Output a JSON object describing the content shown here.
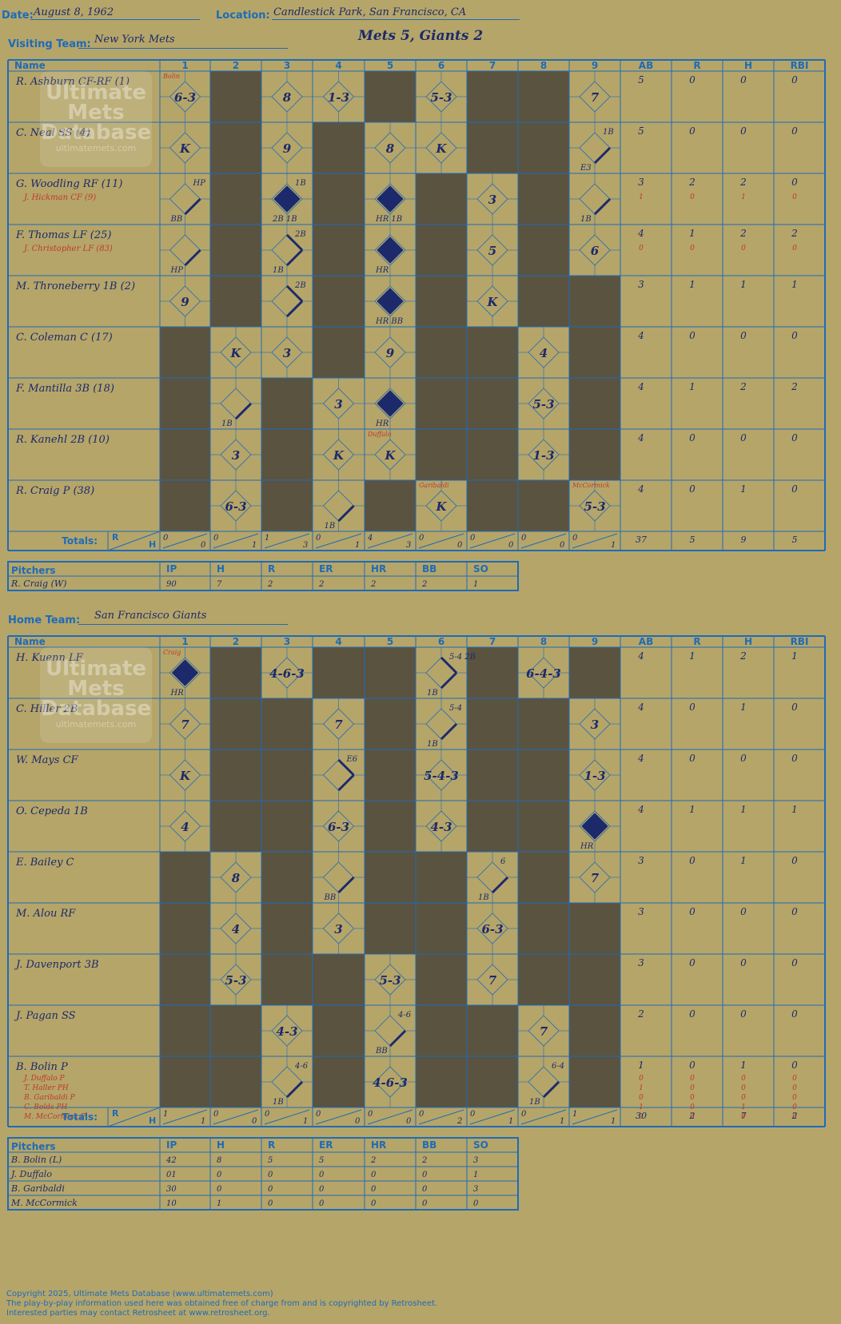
{
  "header": {
    "date_label": "Date:",
    "date": "August 8, 1962",
    "location_label": "Location:",
    "location": "Candlestick Park, San Francisco, CA",
    "visiting_label": "Visiting Team:",
    "visiting_team": "New York Mets",
    "home_label": "Home Team:",
    "home_team": "San Francisco Giants",
    "result": "Mets 5, Giants 2"
  },
  "labels": {
    "name": "Name",
    "totals": "Totals:",
    "r": "R",
    "h": "H",
    "innings": [
      "1",
      "2",
      "3",
      "4",
      "5",
      "6",
      "7",
      "8",
      "9"
    ],
    "stat_cols": [
      "AB",
      "R",
      "H",
      "RBI"
    ],
    "pitchers": "Pitchers",
    "pitch_cols": [
      "IP",
      "H",
      "R",
      "ER",
      "HR",
      "BB",
      "SO"
    ]
  },
  "visitors": {
    "batters": [
      {
        "name": "R. Ashburn CF-RF (1)",
        "subs": [],
        "stats": [
          "5",
          "0",
          "0",
          "0"
        ],
        "sub_stats": [],
        "plays": [
          {
            "i": 1,
            "t": "6-3"
          },
          {
            "i": 3,
            "t": "8"
          },
          {
            "i": 4,
            "t": "1-3"
          },
          {
            "i": 6,
            "t": "5-3"
          },
          {
            "i": 9,
            "t": "7"
          }
        ],
        "shade": [
          2,
          5,
          7,
          8
        ]
      },
      {
        "name": "C. Neal SS (4)",
        "subs": [],
        "stats": [
          "5",
          "0",
          "0",
          "0"
        ],
        "sub_stats": [],
        "plays": [
          {
            "i": 1,
            "t": "K"
          },
          {
            "i": 3,
            "t": "9"
          },
          {
            "i": 5,
            "t": "8"
          },
          {
            "i": 6,
            "t": "K"
          },
          {
            "i": 9,
            "t": "",
            "bases": 1,
            "ul": "1B",
            "ll": "E3"
          }
        ],
        "shade": [
          2,
          4,
          7,
          8
        ]
      },
      {
        "name": "G. Woodling RF (11)",
        "subs": [
          "J. Hickman CF (9)"
        ],
        "stats": [
          "3",
          "2",
          "2",
          "0"
        ],
        "sub_stats": [
          [
            "1",
            "0",
            "1",
            "0"
          ]
        ],
        "plays": [
          {
            "i": 1,
            "t": "",
            "bases": 1,
            "ul": "HP",
            "ll": "BB"
          },
          {
            "i": 3,
            "t": "",
            "run": 1,
            "ul": "1B",
            "ll": "2B 1B"
          },
          {
            "i": 5,
            "t": "",
            "run": 1,
            "ll": "HR 1B"
          },
          {
            "i": 7,
            "t": "3"
          },
          {
            "i": 9,
            "t": "",
            "bases": 1,
            "ll": "1B"
          }
        ],
        "shade": [
          2,
          4,
          6,
          8
        ]
      },
      {
        "name": "F. Thomas LF (25)",
        "subs": [
          "J. Christopher LF (83)"
        ],
        "stats": [
          "4",
          "1",
          "2",
          "2"
        ],
        "sub_stats": [
          [
            "0",
            "0",
            "0",
            "0"
          ]
        ],
        "plays": [
          {
            "i": 1,
            "t": "",
            "bases": 1,
            "ll": "HP"
          },
          {
            "i": 3,
            "t": "",
            "bases": 2,
            "ul": "2B",
            "ll": "1B"
          },
          {
            "i": 5,
            "t": "",
            "run": 1,
            "ll": "HR"
          },
          {
            "i": 7,
            "t": "5"
          },
          {
            "i": 9,
            "t": "6"
          }
        ],
        "shade": [
          2,
          4,
          6,
          8
        ]
      },
      {
        "name": "M. Throneberry 1B (2)",
        "subs": [],
        "stats": [
          "3",
          "1",
          "1",
          "1"
        ],
        "sub_stats": [],
        "plays": [
          {
            "i": 1,
            "t": "9"
          },
          {
            "i": 3,
            "t": "",
            "bases": 2,
            "ul": "2B"
          },
          {
            "i": 5,
            "t": "",
            "run": 1,
            "ll": "HR BB"
          },
          {
            "i": 7,
            "t": "K"
          }
        ],
        "shade": [
          2,
          4,
          6,
          8,
          9
        ]
      },
      {
        "name": "C. Coleman C (17)",
        "subs": [],
        "stats": [
          "4",
          "0",
          "0",
          "0"
        ],
        "sub_stats": [],
        "plays": [
          {
            "i": 2,
            "t": "K"
          },
          {
            "i": 3,
            "t": "3"
          },
          {
            "i": 5,
            "t": "9"
          },
          {
            "i": 8,
            "t": "4"
          }
        ],
        "shade": [
          1,
          4,
          6,
          7,
          9
        ]
      },
      {
        "name": "F. Mantilla 3B (18)",
        "subs": [],
        "stats": [
          "4",
          "1",
          "2",
          "2"
        ],
        "sub_stats": [],
        "plays": [
          {
            "i": 2,
            "t": "",
            "bases": 1,
            "ll": "1B"
          },
          {
            "i": 4,
            "t": "3"
          },
          {
            "i": 5,
            "t": "",
            "run": 1,
            "ll": "HR"
          },
          {
            "i": 8,
            "t": "5-3"
          }
        ],
        "shade": [
          1,
          3,
          6,
          7,
          9
        ]
      },
      {
        "name": "R. Kanehl 2B (10)",
        "subs": [],
        "stats": [
          "4",
          "0",
          "0",
          "0"
        ],
        "sub_stats": [],
        "plays": [
          {
            "i": 2,
            "t": "3"
          },
          {
            "i": 4,
            "t": "K"
          },
          {
            "i": 5,
            "t": "K",
            "pc": "Duffalo"
          },
          {
            "i": 8,
            "t": "1-3"
          }
        ],
        "shade": [
          1,
          3,
          6,
          7,
          9
        ]
      },
      {
        "name": "R. Craig P (38)",
        "subs": [],
        "stats": [
          "4",
          "0",
          "1",
          "0"
        ],
        "sub_stats": [],
        "plays": [
          {
            "i": 2,
            "t": "6-3"
          },
          {
            "i": 4,
            "t": "",
            "bases": 1,
            "ll": "1B"
          },
          {
            "i": 6,
            "t": "K",
            "pc": "Garibaldi"
          },
          {
            "i": 9,
            "t": "5-3",
            "pc": "McCormick"
          }
        ],
        "shade": [
          1,
          3,
          5,
          7,
          8
        ]
      }
    ],
    "first_pitcher_note": {
      "i": 1,
      "row": 0,
      "t": "Bolin"
    },
    "totals": [
      [
        "0",
        "0"
      ],
      [
        "0",
        "1"
      ],
      [
        "1",
        "3"
      ],
      [
        "0",
        "1"
      ],
      [
        "4",
        "3"
      ],
      [
        "0",
        "0"
      ],
      [
        "0",
        "0"
      ],
      [
        "0",
        "0"
      ],
      [
        "0",
        "1"
      ]
    ],
    "total_stats": [
      "37",
      "5",
      "9",
      "5"
    ],
    "pitchers": [
      {
        "name": "R. Craig (W)",
        "stats": [
          "90",
          "7",
          "2",
          "2",
          "2",
          "2",
          "1"
        ]
      }
    ]
  },
  "home": {
    "batters": [
      {
        "name": "H. Kuenn LF",
        "subs": [],
        "stats": [
          "4",
          "1",
          "2",
          "1"
        ],
        "sub_stats": [],
        "plays": [
          {
            "i": 1,
            "t": "",
            "run": 1,
            "ll": "HR",
            "pc": "Craig"
          },
          {
            "i": 3,
            "t": "4-6-3"
          },
          {
            "i": 6,
            "t": "",
            "bases": 2,
            "ul": "5-4 2B",
            "ll": "1B"
          },
          {
            "i": 8,
            "t": "6-4-3"
          }
        ],
        "shade": [
          2,
          4,
          5,
          7,
          9
        ]
      },
      {
        "name": "C. Hiller 2B",
        "subs": [],
        "stats": [
          "4",
          "0",
          "1",
          "0"
        ],
        "sub_stats": [],
        "plays": [
          {
            "i": 1,
            "t": "7"
          },
          {
            "i": 4,
            "t": "7"
          },
          {
            "i": 6,
            "t": "",
            "bases": 1,
            "ul": "5-4",
            "ll": "1B"
          },
          {
            "i": 9,
            "t": "3"
          }
        ],
        "shade": [
          2,
          3,
          5,
          7,
          8
        ]
      },
      {
        "name": "W. Mays CF",
        "subs": [],
        "stats": [
          "4",
          "0",
          "0",
          "0"
        ],
        "sub_stats": [],
        "plays": [
          {
            "i": 1,
            "t": "K"
          },
          {
            "i": 4,
            "t": "",
            "bases": 2,
            "ul": "E6"
          },
          {
            "i": 6,
            "t": "5-4-3"
          },
          {
            "i": 9,
            "t": "1-3"
          }
        ],
        "shade": [
          2,
          3,
          5,
          7,
          8
        ]
      },
      {
        "name": "O. Cepeda 1B",
        "subs": [],
        "stats": [
          "4",
          "1",
          "1",
          "1"
        ],
        "sub_stats": [],
        "plays": [
          {
            "i": 1,
            "t": "4"
          },
          {
            "i": 4,
            "t": "6-3"
          },
          {
            "i": 6,
            "t": "4-3"
          },
          {
            "i": 9,
            "t": "",
            "run": 1,
            "ll": "HR"
          }
        ],
        "shade": [
          2,
          3,
          5,
          7,
          8
        ]
      },
      {
        "name": "E. Bailey C",
        "subs": [],
        "stats": [
          "3",
          "0",
          "1",
          "0"
        ],
        "sub_stats": [],
        "plays": [
          {
            "i": 2,
            "t": "8"
          },
          {
            "i": 4,
            "t": "",
            "bases": 1,
            "ll": "BB"
          },
          {
            "i": 7,
            "t": "",
            "bases": 1,
            "ul": "6",
            "ll": "1B"
          },
          {
            "i": 9,
            "t": "7"
          }
        ],
        "shade": [
          1,
          3,
          5,
          6,
          8
        ]
      },
      {
        "name": "M. Alou RF",
        "subs": [],
        "stats": [
          "3",
          "0",
          "0",
          "0"
        ],
        "sub_stats": [],
        "plays": [
          {
            "i": 2,
            "t": "4"
          },
          {
            "i": 4,
            "t": "3"
          },
          {
            "i": 7,
            "t": "6-3"
          }
        ],
        "shade": [
          1,
          3,
          5,
          6,
          8,
          9
        ]
      },
      {
        "name": "J. Davenport 3B",
        "subs": [],
        "stats": [
          "3",
          "0",
          "0",
          "0"
        ],
        "sub_stats": [],
        "plays": [
          {
            "i": 2,
            "t": "5-3"
          },
          {
            "i": 5,
            "t": "5-3"
          },
          {
            "i": 7,
            "t": "7"
          }
        ],
        "shade": [
          1,
          3,
          4,
          6,
          8,
          9
        ]
      },
      {
        "name": "J. Pagan SS",
        "subs": [],
        "stats": [
          "2",
          "0",
          "0",
          "0"
        ],
        "sub_stats": [],
        "plays": [
          {
            "i": 3,
            "t": "4-3"
          },
          {
            "i": 5,
            "t": "",
            "bases": 1,
            "ul": "4-6",
            "ll": "BB"
          },
          {
            "i": 8,
            "t": "7"
          }
        ],
        "shade": [
          1,
          2,
          4,
          6,
          7,
          9
        ]
      },
      {
        "name": "B. Bolin P",
        "subs": [
          "J. Duffalo P",
          "T. Haller PH",
          "B. Garibaldi P",
          "C. Bolds PH",
          "M. McCormick P"
        ],
        "stats": [
          "1",
          "0",
          "1",
          "0"
        ],
        "sub_stats": [
          [
            "0",
            "0",
            "0",
            "0"
          ],
          [
            "1",
            "0",
            "0",
            "0"
          ],
          [
            "0",
            "0",
            "0",
            "0"
          ],
          [
            "1",
            "0",
            "1",
            "0"
          ],
          [
            "0",
            "0",
            "0",
            "0"
          ]
        ],
        "plays": [
          {
            "i": 3,
            "t": "",
            "bases": 1,
            "ul": "4-6",
            "ll": "1B"
          },
          {
            "i": 5,
            "t": "4-6-3"
          },
          {
            "i": 8,
            "t": "",
            "bases": 1,
            "ul": "6-4",
            "ll": "1B"
          }
        ],
        "shade": [
          1,
          2,
          4,
          6,
          7,
          9
        ]
      }
    ],
    "totals": [
      [
        "1",
        "1"
      ],
      [
        "0",
        "0"
      ],
      [
        "0",
        "1"
      ],
      [
        "0",
        "0"
      ],
      [
        "0",
        "0"
      ],
      [
        "0",
        "2"
      ],
      [
        "0",
        "1"
      ],
      [
        "0",
        "1"
      ],
      [
        "1",
        "1"
      ]
    ],
    "total_stats": [
      "30",
      "2",
      "7",
      "2"
    ],
    "pitchers": [
      {
        "name": "B. Bolin (L)",
        "stats": [
          "42",
          "8",
          "5",
          "5",
          "2",
          "2",
          "3"
        ]
      },
      {
        "name": "J. Duffalo",
        "stats": [
          "01",
          "0",
          "0",
          "0",
          "0",
          "0",
          "1"
        ]
      },
      {
        "name": "B. Garibaldi",
        "stats": [
          "30",
          "0",
          "0",
          "0",
          "0",
          "0",
          "3"
        ]
      },
      {
        "name": "M. McCormick",
        "stats": [
          "10",
          "1",
          "0",
          "0",
          "0",
          "0",
          "0"
        ]
      }
    ]
  },
  "watermark": {
    "line1": "Ultimate",
    "line2": "Mets",
    "line3": "Database",
    "line4": "ultimatemets.com"
  },
  "footer": {
    "copyright": "Copyright 2025, Ultimate Mets Database (www.ultimatemets.com)",
    "line2": "The play-by-play information used here was obtained free of charge from and is copyrighted by Retrosheet.",
    "line3": "Interested parties may contact Retrosheet at www.retrosheet.org."
  },
  "colors": {
    "bg": "#b5a569",
    "grid": "#1e6bb8",
    "shade": "#5a5340",
    "ink": "#1c2a6b",
    "note": "#c0392b",
    "sub": "#a0522d"
  }
}
